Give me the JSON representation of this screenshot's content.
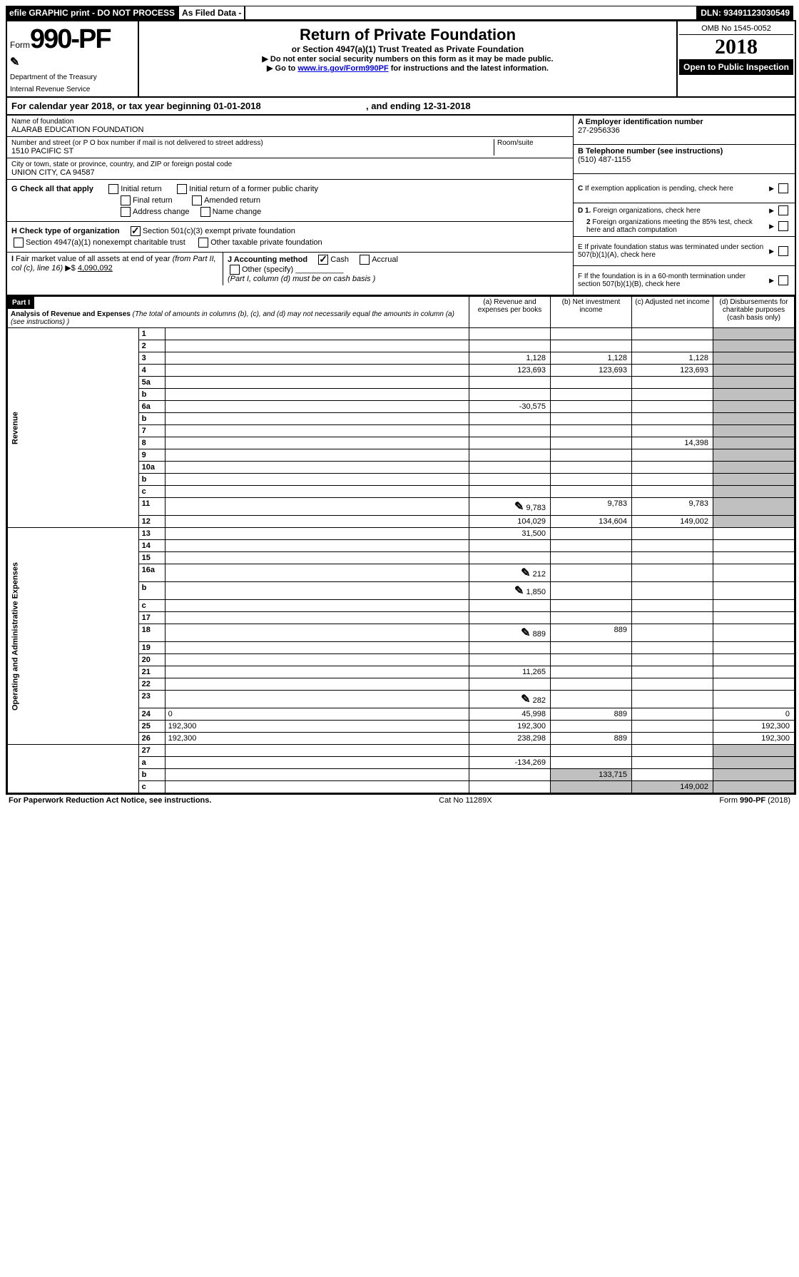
{
  "topbar": {
    "efile": "efile GRAPHIC print - DO NOT PROCESS",
    "asfiled": "As Filed Data -",
    "dln": "DLN: 93491123030549"
  },
  "header": {
    "form_prefix": "Form",
    "form_num": "990-PF",
    "dept1": "Department of the Treasury",
    "dept2": "Internal Revenue Service",
    "title": "Return of Private Foundation",
    "subtitle": "or Section 4947(a)(1) Trust Treated as Private Foundation",
    "instr1": "▶ Do not enter social security numbers on this form as it may be made public.",
    "instr2_pre": "▶ Go to ",
    "instr2_link": "www.irs.gov/Form990PF",
    "instr2_post": " for instructions and the latest information.",
    "omb": "OMB No 1545-0052",
    "year": "2018",
    "open": "Open to Public Inspection"
  },
  "calyear": {
    "text_pre": "For calendar year 2018, or tax year beginning ",
    "begin": "01-01-2018",
    "mid": " , and ending ",
    "end": "12-31-2018"
  },
  "info": {
    "name_label": "Name of foundation",
    "name": "ALARAB EDUCATION FOUNDATION",
    "addr_label": "Number and street (or P O  box number if mail is not delivered to street address)",
    "room_label": "Room/suite",
    "addr": "1510 PACIFIC ST",
    "city_label": "City or town, state or province, country, and ZIP or foreign postal code",
    "city": "UNION CITY, CA  94587",
    "a_label": "A Employer identification number",
    "a_val": "27-2956336",
    "b_label": "B Telephone number (see instructions)",
    "b_val": "(510) 487-1155",
    "c_label": "C If exemption application is pending, check here",
    "d1": "D 1. Foreign organizations, check here",
    "d2": "2 Foreign organizations meeting the 85% test, check here and attach computation",
    "e_label": "E  If private foundation status was terminated under section 507(b)(1)(A), check here",
    "f_label": "F  If the foundation is in a 60-month termination under section 507(b)(1)(B), check here"
  },
  "sectionG": {
    "g_label": "G Check all that apply",
    "opts": [
      "Initial return",
      "Initial return of a former public charity",
      "Final return",
      "Amended return",
      "Address change",
      "Name change"
    ],
    "h_label": "H Check type of organization",
    "h1": "Section 501(c)(3) exempt private foundation",
    "h2": "Section 4947(a)(1) nonexempt charitable trust",
    "h3": "Other taxable private foundation",
    "i_label": "I Fair market value of all assets at end of year (from Part II, col  (c), line 16) ▶$ ",
    "i_val": "4,090,092",
    "j_label": "J Accounting method",
    "j_cash": "Cash",
    "j_accrual": "Accrual",
    "j_other": "Other (specify)",
    "j_note": "(Part I, column (d) must be on cash basis )"
  },
  "part1": {
    "label": "Part I",
    "title": "Analysis of Revenue and Expenses",
    "note": " (The total of amounts in columns (b), (c), and (d) may not necessarily equal the amounts in column (a) (see instructions) )",
    "col_a": "(a) Revenue and expenses per books",
    "col_b": "(b) Net investment income",
    "col_c": "(c) Adjusted net income",
    "col_d": "(d) Disbursements for charitable purposes (cash basis only)",
    "revenue_label": "Revenue",
    "expense_label": "Operating and Administrative Expenses"
  },
  "rows": [
    {
      "n": "1",
      "d": "",
      "a": "",
      "b": "",
      "c": "",
      "bgrey": true,
      "cgrey": false,
      "dgrey": true
    },
    {
      "n": "2",
      "d": "",
      "a": "",
      "b": "",
      "c": ""
    },
    {
      "n": "3",
      "d": "",
      "a": "1,128",
      "b": "1,128",
      "c": "1,128"
    },
    {
      "n": "4",
      "d": "",
      "a": "123,693",
      "b": "123,693",
      "c": "123,693"
    },
    {
      "n": "5a",
      "d": "",
      "a": "",
      "b": "",
      "c": ""
    },
    {
      "n": "b",
      "d": "",
      "a": "",
      "b": "",
      "c": ""
    },
    {
      "n": "6a",
      "d": "",
      "a": "-30,575",
      "b": "",
      "c": ""
    },
    {
      "n": "b",
      "d": "",
      "a": "",
      "b": "",
      "c": ""
    },
    {
      "n": "7",
      "d": "",
      "a": "",
      "b": "",
      "c": ""
    },
    {
      "n": "8",
      "d": "",
      "a": "",
      "b": "",
      "c": "14,398"
    },
    {
      "n": "9",
      "d": "",
      "a": "",
      "b": "",
      "c": ""
    },
    {
      "n": "10a",
      "d": "",
      "a": "",
      "b": "",
      "c": ""
    },
    {
      "n": "b",
      "d": "",
      "a": "",
      "b": "",
      "c": ""
    },
    {
      "n": "c",
      "d": "",
      "a": "",
      "b": "",
      "c": ""
    },
    {
      "n": "11",
      "d": "",
      "a": "9,783",
      "b": "9,783",
      "c": "9,783",
      "icon": true
    },
    {
      "n": "12",
      "d": "",
      "a": "104,029",
      "b": "134,604",
      "c": "149,002"
    }
  ],
  "exp_rows": [
    {
      "n": "13",
      "d": "",
      "a": "31,500",
      "b": "",
      "c": ""
    },
    {
      "n": "14",
      "d": "",
      "a": "",
      "b": "",
      "c": ""
    },
    {
      "n": "15",
      "d": "",
      "a": "",
      "b": "",
      "c": ""
    },
    {
      "n": "16a",
      "d": "",
      "a": "212",
      "b": "",
      "c": "",
      "icon": true
    },
    {
      "n": "b",
      "d": "",
      "a": "1,850",
      "b": "",
      "c": "",
      "icon": true
    },
    {
      "n": "c",
      "d": "",
      "a": "",
      "b": "",
      "c": ""
    },
    {
      "n": "17",
      "d": "",
      "a": "",
      "b": "",
      "c": ""
    },
    {
      "n": "18",
      "d": "",
      "a": "889",
      "b": "889",
      "c": "",
      "icon": true
    },
    {
      "n": "19",
      "d": "",
      "a": "",
      "b": "",
      "c": ""
    },
    {
      "n": "20",
      "d": "",
      "a": "",
      "b": "",
      "c": ""
    },
    {
      "n": "21",
      "d": "",
      "a": "11,265",
      "b": "",
      "c": ""
    },
    {
      "n": "22",
      "d": "",
      "a": "",
      "b": "",
      "c": ""
    },
    {
      "n": "23",
      "d": "",
      "a": "282",
      "b": "",
      "c": "",
      "icon": true
    },
    {
      "n": "24",
      "d": "0",
      "a": "45,998",
      "b": "889",
      "c": ""
    },
    {
      "n": "25",
      "d": "192,300",
      "a": "192,300",
      "b": "",
      "c": ""
    },
    {
      "n": "26",
      "d": "192,300",
      "a": "238,298",
      "b": "889",
      "c": ""
    }
  ],
  "bottom_rows": [
    {
      "n": "27",
      "d": "",
      "a": "",
      "b": "",
      "c": ""
    },
    {
      "n": "a",
      "d": "",
      "a": "-134,269",
      "b": "",
      "c": ""
    },
    {
      "n": "b",
      "d": "",
      "a": "",
      "b": "133,715",
      "c": ""
    },
    {
      "n": "c",
      "d": "",
      "a": "",
      "b": "",
      "c": "149,002"
    }
  ],
  "footer": {
    "left": "For Paperwork Reduction Act Notice, see instructions.",
    "mid": "Cat  No  11289X",
    "right_pre": "Form ",
    "right_bold": "990-PF",
    "right_post": " (2018)"
  }
}
